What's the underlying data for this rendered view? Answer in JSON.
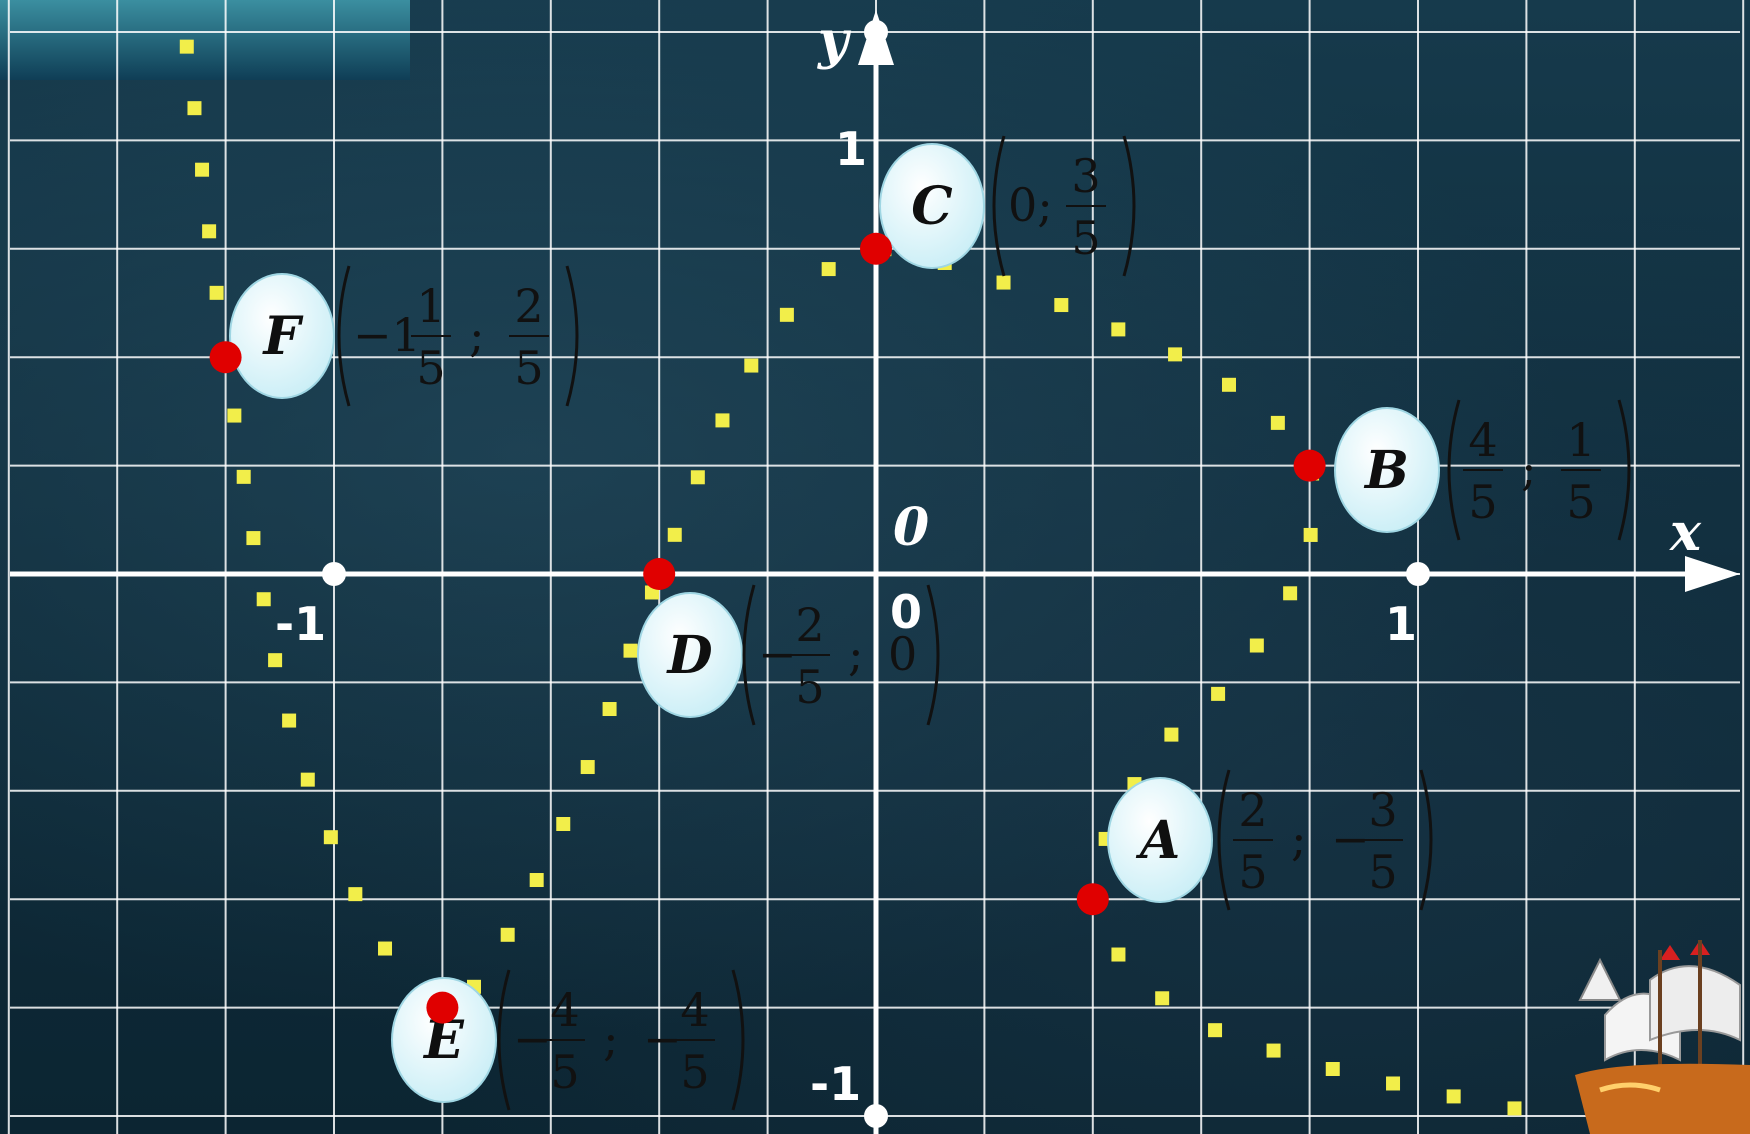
{
  "axes": {
    "x_label": "x",
    "y_label": "y",
    "origin_label": "0",
    "origin_label_2": "0",
    "x_one": "1",
    "x_minus_one": "-1",
    "y_one": "1",
    "y_minus_one": "-1"
  },
  "colors": {
    "grid": "#ffffff",
    "curve": "#f2ee4a",
    "point": "#e00000",
    "bubble": "#e6fbff"
  },
  "points": [
    {
      "id": "A",
      "x": 0.4,
      "y": -0.6,
      "coord_tokens": [
        {
          "n": "2",
          "d": "5"
        },
        ";",
        {
          "sign": "−",
          "n": "3",
          "d": "5"
        }
      ]
    },
    {
      "id": "B",
      "x": 0.8,
      "y": 0.2,
      "coord_tokens": [
        {
          "n": "4",
          "d": "5"
        },
        ";",
        {
          "n": "1",
          "d": "5"
        }
      ]
    },
    {
      "id": "C",
      "x": 0.0,
      "y": 0.6,
      "coord_tokens": [
        "0;",
        {
          "n": "3",
          "d": "5"
        }
      ]
    },
    {
      "id": "D",
      "x": -0.4,
      "y": 0.0,
      "coord_tokens": [
        {
          "sign": "−",
          "n": "2",
          "d": "5"
        },
        ";",
        "0"
      ]
    },
    {
      "id": "E",
      "x": -0.8,
      "y": -0.8,
      "coord_tokens": [
        {
          "sign": "−",
          "n": "4",
          "d": "5"
        },
        ";",
        {
          "sign": "−",
          "n": "4",
          "d": "5"
        }
      ]
    },
    {
      "id": "F",
      "x": -1.2,
      "y": 0.4,
      "coord_tokens": [
        {
          "sign": "−1",
          "n": "1",
          "d": "5"
        },
        ";",
        {
          "n": "2",
          "d": "5"
        }
      ]
    }
  ],
  "curve_points": [
    [
      -1.3,
      1.2
    ],
    [
      -1.25,
      0.8
    ],
    [
      -1.2,
      0.4
    ],
    [
      -1.1,
      -0.2
    ],
    [
      -1.0,
      -0.5
    ],
    [
      -0.9,
      -0.7
    ],
    [
      -0.8,
      -0.8
    ],
    [
      -0.7,
      -0.7
    ],
    [
      -0.55,
      -0.4
    ],
    [
      -0.4,
      0.0
    ],
    [
      -0.25,
      0.35
    ],
    [
      -0.1,
      0.55
    ],
    [
      0.0,
      0.6
    ],
    [
      0.2,
      0.55
    ],
    [
      0.45,
      0.45
    ],
    [
      0.65,
      0.35
    ],
    [
      0.8,
      0.2
    ],
    [
      0.78,
      0.0
    ],
    [
      0.65,
      -0.2
    ],
    [
      0.5,
      -0.35
    ],
    [
      0.4,
      -0.6
    ],
    [
      0.55,
      -0.8
    ],
    [
      0.8,
      -0.9
    ],
    [
      1.0,
      -0.95
    ],
    [
      1.25,
      -1.0
    ]
  ]
}
